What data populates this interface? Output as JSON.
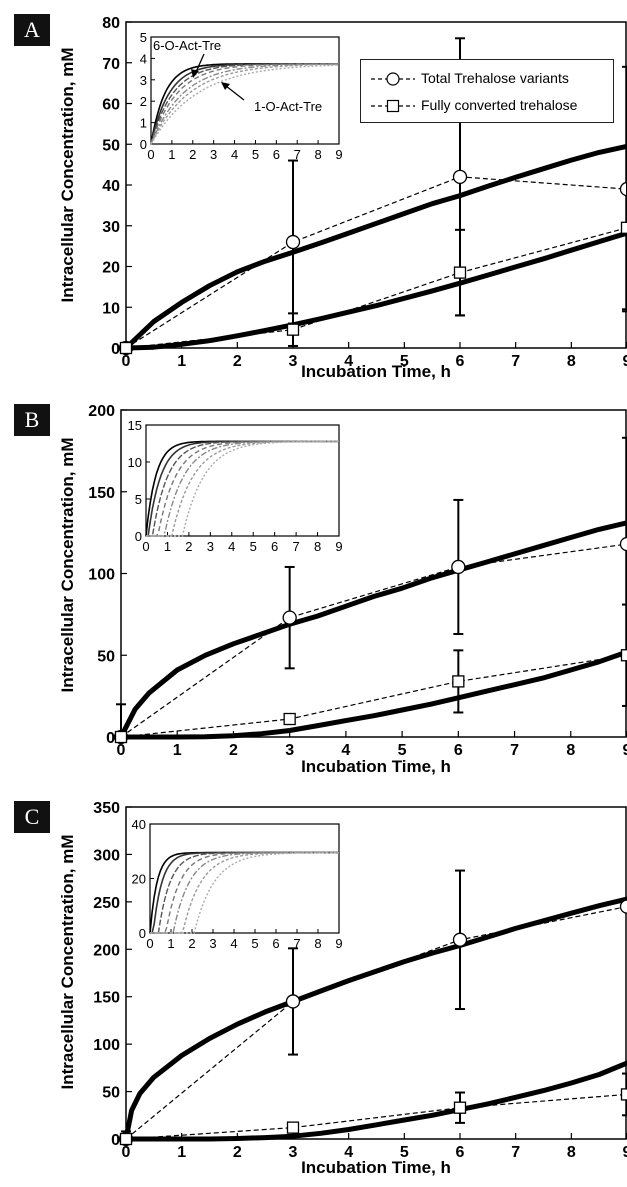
{
  "chart_data": [
    {
      "panel": "A",
      "type": "line",
      "xlabel": "Incubation Time, h",
      "ylabel": "Intracellular Concentration, mM",
      "xlim": [
        0,
        9
      ],
      "ylim": [
        0,
        80
      ],
      "xticks": [
        "0",
        "1",
        "2",
        "3",
        "4",
        "5",
        "6",
        "7",
        "8",
        "9"
      ],
      "yticks": [
        "0",
        "10",
        "20",
        "30",
        "40",
        "50",
        "60",
        "70",
        "80"
      ],
      "legend": {
        "position": "top-right",
        "entries": [
          {
            "label": "Total Trehalose variants",
            "marker": "circle"
          },
          {
            "label": "Fully converted trehalose",
            "marker": "square"
          }
        ]
      },
      "series": [
        {
          "marker": "circle",
          "x": [
            0,
            3,
            6,
            9
          ],
          "y": [
            0,
            26,
            42,
            39
          ],
          "err": [
            1,
            20,
            34,
            30
          ]
        },
        {
          "marker": "square",
          "x": [
            0,
            3,
            6,
            9
          ],
          "y": [
            0,
            4.5,
            18.5,
            29.5
          ],
          "err": [
            0.5,
            4,
            10.5,
            20
          ]
        }
      ],
      "models": [
        {
          "x": [
            0,
            0.5,
            1,
            1.5,
            2,
            2.5,
            3,
            3.5,
            4,
            4.5,
            5,
            5.5,
            6,
            6.5,
            7,
            7.5,
            8,
            8.5,
            9
          ],
          "y": [
            0,
            6.5,
            11.2,
            15.3,
            18.7,
            21.3,
            23.5,
            25.8,
            28.2,
            30.6,
            33.0,
            35.4,
            37.4,
            39.7,
            41.9,
            44.0,
            46.1,
            48.0,
            49.5
          ]
        },
        {
          "x": [
            0,
            0.5,
            1,
            1.5,
            2,
            2.5,
            3,
            3.5,
            4,
            4.5,
            5,
            5.5,
            6,
            6.5,
            7,
            7.5,
            8,
            8.5,
            9
          ],
          "y": [
            0,
            0.2,
            0.9,
            1.8,
            3.0,
            4.3,
            5.7,
            7.2,
            8.8,
            10.4,
            12.2,
            14.0,
            15.9,
            17.9,
            19.9,
            21.9,
            24.0,
            26.1,
            28.2
          ]
        }
      ],
      "inset": {
        "xlim": [
          0,
          9
        ],
        "ylim": [
          0,
          5
        ],
        "xticks": [
          "0",
          "1",
          "2",
          "3",
          "4",
          "5",
          "6",
          "7",
          "8",
          "9"
        ],
        "yticks": [
          "0",
          "1",
          "2",
          "3",
          "4",
          "5"
        ],
        "plateau": 3.75,
        "rates": [
          1.5,
          1.15,
          0.95,
          0.8,
          0.65,
          0.55,
          0.45
        ],
        "delays": [
          0,
          0,
          0,
          0,
          0,
          0,
          0
        ],
        "annotations": [
          "6-O-Act-Tre",
          "1-O-Act-Tre"
        ]
      }
    },
    {
      "panel": "B",
      "type": "line",
      "xlabel": "Incubation Time, h",
      "ylabel": "Intracellular Concentration, mM",
      "xlim": [
        0,
        9
      ],
      "ylim": [
        0,
        200
      ],
      "xticks": [
        "0",
        "1",
        "2",
        "3",
        "4",
        "5",
        "6",
        "7",
        "8",
        "9"
      ],
      "yticks": [
        "0",
        "50",
        "100",
        "150",
        "200"
      ],
      "series": [
        {
          "marker": "circle",
          "x": [
            0,
            3,
            6,
            9
          ],
          "y": [
            0,
            73,
            104,
            118
          ],
          "err": [
            20,
            31,
            41,
            65
          ]
        },
        {
          "marker": "square",
          "x": [
            0,
            3,
            6,
            9
          ],
          "y": [
            0,
            11,
            34,
            50
          ],
          "err": [
            2,
            2,
            19,
            31
          ]
        }
      ],
      "models": [
        {
          "x": [
            0,
            0.25,
            0.5,
            1,
            1.5,
            2,
            2.5,
            3,
            3.5,
            4,
            4.5,
            5,
            5.5,
            6,
            6.5,
            7,
            7.5,
            8,
            8.5,
            9
          ],
          "y": [
            0,
            17,
            27,
            41,
            50,
            57,
            63,
            69,
            74,
            80,
            86,
            91,
            97,
            102,
            107,
            112,
            117,
            122,
            127,
            131
          ]
        },
        {
          "x": [
            0,
            0.5,
            1,
            1.5,
            2,
            2.5,
            3,
            3.5,
            4,
            4.5,
            5,
            5.5,
            6,
            6.5,
            7,
            7.5,
            8,
            8.5,
            9
          ],
          "y": [
            0,
            0,
            0,
            0.2,
            0.8,
            2,
            4,
            7,
            10,
            13,
            16.5,
            20,
            24,
            28,
            32,
            36,
            41,
            46,
            52
          ]
        }
      ],
      "inset": {
        "xlim": [
          0,
          9
        ],
        "ylim": [
          0,
          15
        ],
        "xticks": [
          "0",
          "1",
          "2",
          "3",
          "4",
          "5",
          "6",
          "7",
          "8",
          "9"
        ],
        "yticks": [
          "0",
          "5",
          "10",
          "15"
        ],
        "plateau": 12.8,
        "rates": [
          2.2,
          1.7,
          1.4,
          1.2,
          1.1,
          1.0,
          1.0
        ],
        "delays": [
          0,
          0.1,
          0.3,
          0.55,
          0.85,
          1.2,
          1.7
        ],
        "annotations": []
      }
    },
    {
      "panel": "C",
      "type": "line",
      "xlabel": "Incubation Time, h",
      "ylabel": "Intracellular Concentration, mM",
      "xlim": [
        0,
        9
      ],
      "ylim": [
        0,
        350
      ],
      "xticks": [
        "0",
        "1",
        "2",
        "3",
        "4",
        "5",
        "6",
        "7",
        "8",
        "9"
      ],
      "yticks": [
        "0",
        "50",
        "100",
        "150",
        "200",
        "250",
        "300",
        "350"
      ],
      "series": [
        {
          "marker": "circle",
          "x": [
            0,
            3,
            6,
            9
          ],
          "y": [
            0,
            145,
            210,
            245
          ],
          "err": [
            8,
            56,
            73,
            0
          ]
        },
        {
          "marker": "square",
          "x": [
            0,
            3,
            6,
            9
          ],
          "y": [
            0,
            12,
            33,
            47
          ],
          "err": [
            2,
            2,
            16,
            22
          ]
        }
      ],
      "models": [
        {
          "x": [
            0,
            0.1,
            0.25,
            0.5,
            1,
            1.5,
            2,
            2.5,
            3,
            3.5,
            4,
            4.5,
            5,
            5.5,
            6,
            6.5,
            7,
            7.5,
            8,
            8.5,
            9
          ],
          "y": [
            0,
            30,
            48,
            65,
            88,
            106,
            121,
            134,
            145,
            156,
            167,
            177,
            187,
            196,
            204,
            213,
            222,
            230,
            238,
            246,
            253
          ]
        },
        {
          "x": [
            0,
            0.5,
            1,
            1.5,
            2,
            2.5,
            3,
            3.5,
            4,
            4.5,
            5,
            5.5,
            6,
            6.5,
            7,
            7.5,
            8,
            8.5,
            9
          ],
          "y": [
            0,
            0,
            0,
            0,
            0.5,
            1.5,
            3,
            6,
            10,
            15,
            20,
            25,
            31,
            37,
            44,
            51,
            59,
            68,
            80
          ]
        }
      ],
      "inset": {
        "xlim": [
          0,
          9
        ],
        "ylim": [
          0,
          40
        ],
        "xticks": [
          "0",
          "1",
          "2",
          "3",
          "4",
          "5",
          "6",
          "7",
          "8",
          "9"
        ],
        "yticks": [
          "0",
          "20",
          "40"
        ],
        "plateau": 29.5,
        "rates": [
          3.0,
          2.4,
          1.8,
          1.5,
          1.3,
          1.15,
          1.05
        ],
        "delays": [
          0,
          0.15,
          0.4,
          0.75,
          1.1,
          1.55,
          2.1
        ],
        "annotations": []
      }
    }
  ]
}
